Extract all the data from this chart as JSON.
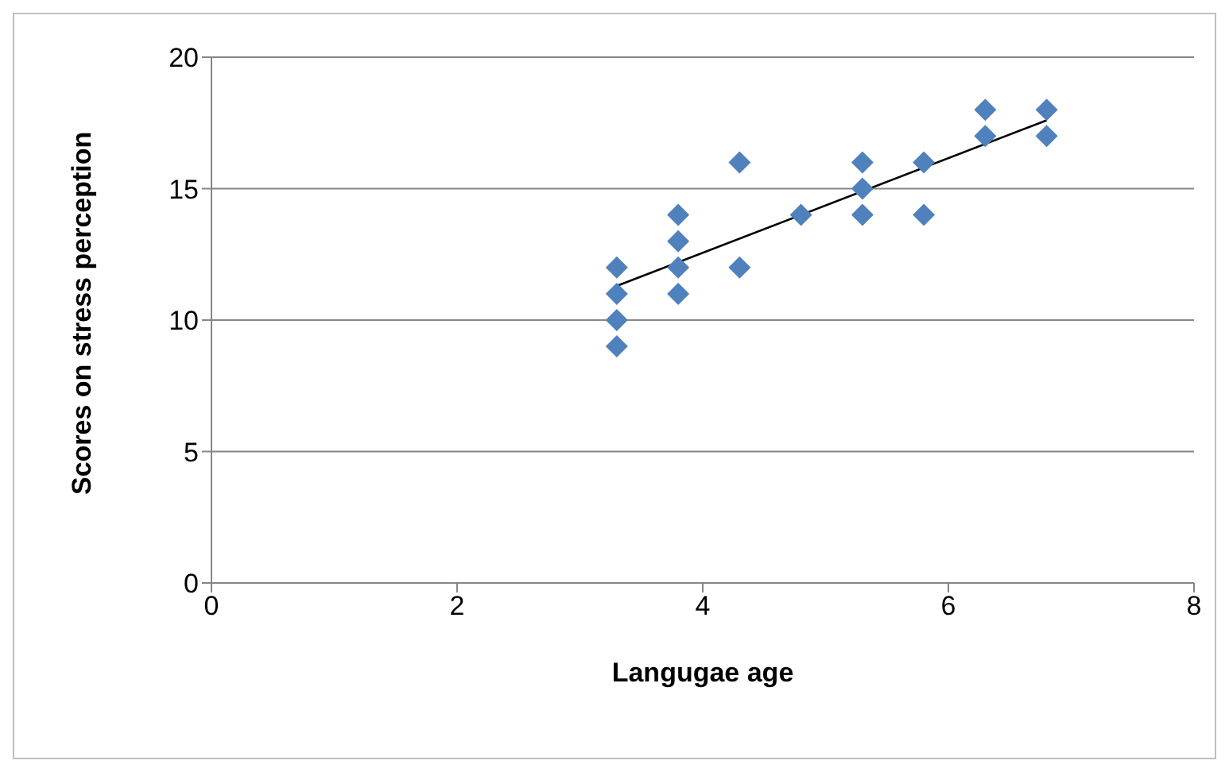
{
  "chart_data": {
    "type": "scatter",
    "xlabel": "Langugae age",
    "ylabel": "Scores on stress perception",
    "xlim": [
      0,
      8
    ],
    "xticks": [
      0,
      2,
      4,
      6,
      8
    ],
    "ylim": [
      0,
      20
    ],
    "yticks": [
      0,
      5,
      10,
      15,
      20
    ],
    "grid": "y",
    "legend": false,
    "marker": "diamond",
    "series": [
      {
        "color": "#4f81bd",
        "x": [
          3.3,
          3.3,
          3.3,
          3.3,
          3.8,
          3.8,
          3.8,
          3.8,
          4.3,
          4.3,
          4.8,
          5.3,
          5.3,
          5.3,
          5.8,
          5.8,
          6.3,
          6.3,
          6.8,
          6.8
        ],
        "values": [
          12,
          11,
          10,
          9,
          14,
          13,
          12,
          11,
          16,
          12,
          14,
          16,
          15,
          14,
          16,
          14,
          18,
          17,
          18,
          17
        ]
      },
      {
        "type": "line",
        "color": "#000000",
        "marker": "none",
        "x": [
          3.3,
          6.8
        ],
        "values": [
          11.3,
          17.6
        ]
      }
    ]
  }
}
